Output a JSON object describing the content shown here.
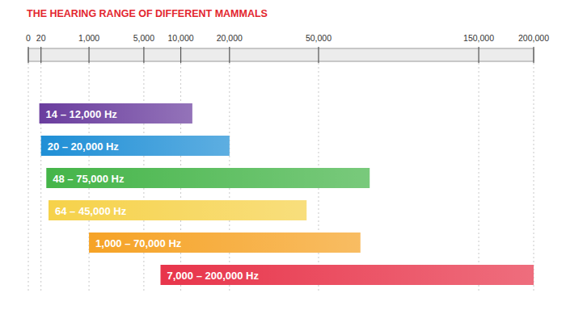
{
  "chart_data": {
    "type": "range",
    "title": "THE HEARING RANGE OF DIFFERENT MAMMALS",
    "orientation": "horizontal",
    "categories": [
      null,
      null,
      null,
      null,
      null,
      null
    ],
    "low": [
      14,
      20,
      48,
      64,
      1000,
      7000
    ],
    "high": [
      12000,
      20000,
      75000,
      45000,
      70000,
      200000
    ],
    "value_labels": [
      "14 – 12,000 Hz",
      "20 – 20,000 Hz",
      "48 – 75,000 Hz",
      "64 – 45,000 Hz",
      "1,000 – 70,000 Hz",
      "7,000 – 200,000 Hz"
    ],
    "data_labels": true,
    "colors": [
      "#6a3d9e",
      "#1f8fd6",
      "#45b549",
      "#f6d24a",
      "#f6a326",
      "#e8354b"
    ],
    "xlim": [
      0,
      200000
    ],
    "xticks": [
      0,
      20,
      {
        "value": 1000,
        "label": "1,000"
      },
      {
        "value": 5000,
        "label": "5,000"
      },
      {
        "value": 10000,
        "label": "10,000"
      },
      {
        "value": 20000,
        "label": "20,000"
      },
      {
        "value": 50000,
        "label": "50,000"
      },
      {
        "value": 150000,
        "label": "150,000"
      },
      {
        "value": 200000,
        "label": "200,000"
      }
    ],
    "grid": true,
    "tick_labels": "x"
  }
}
